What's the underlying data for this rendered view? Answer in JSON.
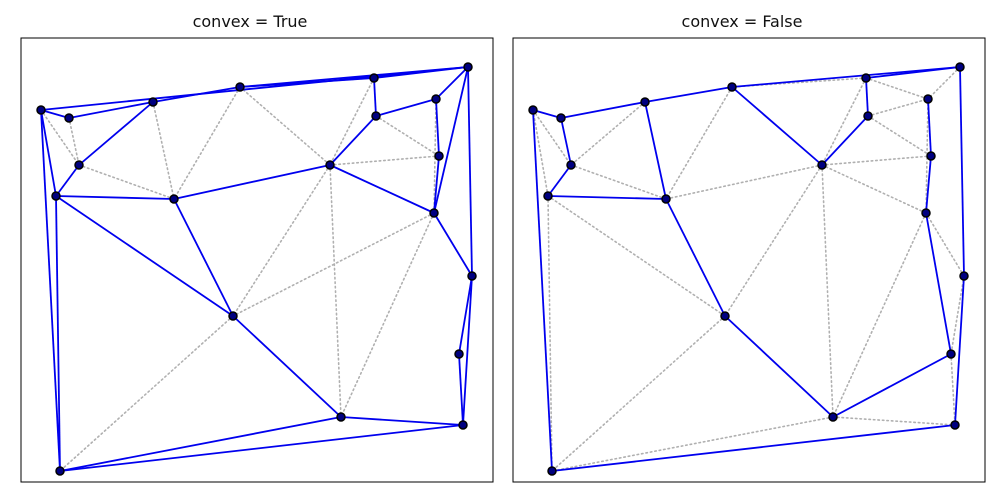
{
  "colors": {
    "chosen_edge": "#0000ee",
    "triangulation_edge": "#b0b0b0",
    "vertex_fill": "#000080",
    "vertex_stroke": "#000000",
    "frame": "#000000"
  },
  "panels": [
    {
      "title": "convex = True",
      "points": [
        [
          0,
          0
        ],
        [
          28,
          8
        ],
        [
          112,
          -8
        ],
        [
          199,
          -23
        ],
        [
          333,
          -32
        ],
        [
          427,
          -43
        ],
        [
          395,
          -11
        ],
        [
          335,
          6
        ],
        [
          398,
          46
        ],
        [
          289,
          55
        ],
        [
          38,
          55
        ],
        [
          15,
          86
        ],
        [
          133,
          89
        ],
        [
          393,
          103
        ],
        [
          431,
          166
        ],
        [
          192,
          206
        ],
        [
          418,
          244
        ],
        [
          300,
          307
        ],
        [
          422,
          315
        ],
        [
          19,
          361
        ]
      ],
      "edges": [
        [
          0,
          1
        ],
        [
          1,
          2
        ],
        [
          2,
          3
        ],
        [
          3,
          5
        ],
        [
          0,
          5
        ],
        [
          5,
          13
        ],
        [
          5,
          14
        ],
        [
          5,
          6
        ],
        [
          6,
          8
        ],
        [
          8,
          13
        ],
        [
          13,
          14
        ],
        [
          14,
          18
        ],
        [
          14,
          16
        ],
        [
          16,
          18
        ],
        [
          18,
          17
        ],
        [
          18,
          19
        ],
        [
          17,
          19
        ],
        [
          17,
          15
        ],
        [
          15,
          11
        ],
        [
          15,
          12
        ],
        [
          12,
          11
        ],
        [
          12,
          9
        ],
        [
          9,
          13
        ],
        [
          9,
          7
        ],
        [
          7,
          6
        ],
        [
          4,
          5
        ],
        [
          4,
          7
        ],
        [
          4,
          3
        ],
        [
          2,
          10
        ],
        [
          10,
          11
        ],
        [
          0,
          11
        ],
        [
          0,
          19
        ],
        [
          11,
          19
        ]
      ],
      "dotted": [
        [
          1,
          10
        ],
        [
          0,
          10
        ],
        [
          3,
          12
        ],
        [
          3,
          9
        ],
        [
          3,
          4
        ],
        [
          4,
          9
        ],
        [
          10,
          12
        ],
        [
          2,
          12
        ],
        [
          9,
          17
        ],
        [
          9,
          15
        ],
        [
          13,
          17
        ],
        [
          15,
          19
        ],
        [
          13,
          15
        ],
        [
          7,
          8
        ],
        [
          6,
          13
        ],
        [
          8,
          9
        ]
      ]
    },
    {
      "title": "convex = False",
      "points": [
        [
          0,
          0
        ],
        [
          28,
          8
        ],
        [
          112,
          -8
        ],
        [
          199,
          -23
        ],
        [
          333,
          -32
        ],
        [
          427,
          -43
        ],
        [
          395,
          -11
        ],
        [
          335,
          6
        ],
        [
          398,
          46
        ],
        [
          289,
          55
        ],
        [
          38,
          55
        ],
        [
          15,
          86
        ],
        [
          133,
          89
        ],
        [
          393,
          103
        ],
        [
          431,
          166
        ],
        [
          192,
          206
        ],
        [
          418,
          244
        ],
        [
          300,
          307
        ],
        [
          422,
          315
        ],
        [
          19,
          361
        ]
      ],
      "edges": [
        [
          0,
          1
        ],
        [
          1,
          2
        ],
        [
          2,
          3
        ],
        [
          3,
          5
        ],
        [
          5,
          14
        ],
        [
          14,
          18
        ],
        [
          18,
          19
        ],
        [
          0,
          19
        ],
        [
          1,
          10
        ],
        [
          10,
          11
        ],
        [
          11,
          12
        ],
        [
          12,
          2
        ],
        [
          12,
          15
        ],
        [
          15,
          17
        ],
        [
          17,
          16
        ],
        [
          16,
          13
        ],
        [
          13,
          8
        ],
        [
          8,
          6
        ],
        [
          3,
          9
        ],
        [
          9,
          7
        ],
        [
          7,
          4
        ],
        [
          4,
          5
        ]
      ],
      "dotted": [
        [
          0,
          10
        ],
        [
          0,
          11
        ],
        [
          5,
          6
        ],
        [
          6,
          13
        ],
        [
          13,
          14
        ],
        [
          14,
          16
        ],
        [
          16,
          18
        ],
        [
          17,
          18
        ],
        [
          17,
          19
        ],
        [
          15,
          19
        ],
        [
          11,
          19
        ],
        [
          11,
          15
        ],
        [
          3,
          12
        ],
        [
          9,
          12
        ],
        [
          9,
          17
        ],
        [
          9,
          15
        ],
        [
          9,
          13
        ],
        [
          4,
          9
        ],
        [
          4,
          3
        ],
        [
          4,
          6
        ],
        [
          7,
          8
        ],
        [
          8,
          9
        ],
        [
          7,
          6
        ],
        [
          10,
          12
        ],
        [
          2,
          10
        ],
        [
          13,
          17
        ]
      ]
    }
  ]
}
